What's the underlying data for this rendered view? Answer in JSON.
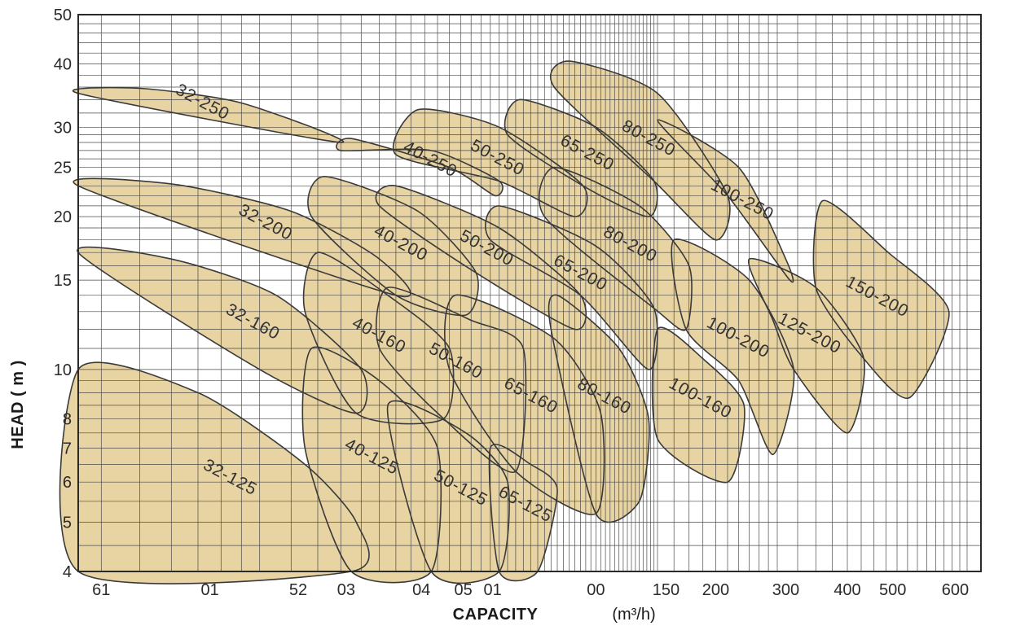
{
  "chart_data": {
    "type": "area",
    "title": "",
    "xlabel": "CAPACITY",
    "xunit": "(m³/h)",
    "ylabel": "HEAD ( m )",
    "x_scale": "log",
    "y_scale": "log",
    "xlim": [
      3.5,
      650
    ],
    "ylim": [
      4,
      50
    ],
    "grid": true,
    "x_tick_labels": [
      "61",
      "01",
      "52",
      "03",
      "04",
      "05",
      "01",
      "00",
      "150",
      "200",
      "300",
      "400",
      "500",
      "600"
    ],
    "y_ticks": [
      4,
      5,
      6,
      7,
      8,
      10,
      15,
      20,
      25,
      30,
      40,
      50
    ],
    "colors": {
      "fill": "#e8d3a2",
      "stroke": "#3a3a3a",
      "grid": "#4a4a4a"
    },
    "regions": [
      {
        "name": "32-250",
        "points": [
          [
            3.5,
            35.0
          ],
          [
            5.0,
            35.8
          ],
          [
            9.0,
            33.5
          ],
          [
            16.0,
            28.0
          ]
        ]
      },
      {
        "name": "40-250",
        "points": [
          [
            17.0,
            28.5
          ],
          [
            30.0,
            25.0
          ],
          [
            39.0,
            22.0
          ],
          [
            40.0,
            23.5
          ],
          [
            27.0,
            27.0
          ],
          [
            16.0,
            27.0
          ]
        ]
      },
      {
        "name": "50-250",
        "points": [
          [
            25.0,
            32.5
          ],
          [
            40.0,
            30.0
          ],
          [
            65.0,
            23.0
          ],
          [
            62.0,
            20.0
          ],
          [
            40.0,
            23.5
          ],
          [
            22.0,
            26.5
          ]
        ]
      },
      {
        "name": "65-250",
        "points": [
          [
            45.0,
            34.0
          ],
          [
            70.0,
            30.0
          ],
          [
            98.0,
            23.5
          ],
          [
            95.0,
            20.0
          ],
          [
            65.0,
            23.0
          ],
          [
            42.0,
            29.0
          ]
        ]
      },
      {
        "name": "80-250",
        "points": [
          [
            60.0,
            40.5
          ],
          [
            100.0,
            35.0
          ],
          [
            150.0,
            22.0
          ],
          [
            140.0,
            18.0
          ],
          [
            98.0,
            23.5
          ],
          [
            55.0,
            36.0
          ]
        ]
      },
      {
        "name": "100-250",
        "points": [
          [
            100.0,
            31.0
          ],
          [
            160.0,
            25.0
          ],
          [
            210.0,
            16.5
          ],
          [
            215.0,
            15.0
          ],
          [
            150.0,
            22.0
          ]
        ]
      },
      {
        "name": "32-200",
        "points": [
          [
            3.5,
            23.0
          ],
          [
            6.0,
            23.2
          ],
          [
            12.0,
            20.5
          ],
          [
            20.0,
            16.5
          ],
          [
            22.0,
            14.0
          ]
        ]
      },
      {
        "name": "40-200",
        "points": [
          [
            14.5,
            24.0
          ],
          [
            25.0,
            20.5
          ],
          [
            35.0,
            15.5
          ],
          [
            33.0,
            12.8
          ],
          [
            22.0,
            14.0
          ],
          [
            13.5,
            20.0
          ]
        ]
      },
      {
        "name": "50-200",
        "points": [
          [
            22.0,
            23.0
          ],
          [
            40.0,
            19.0
          ],
          [
            64.0,
            14.0
          ],
          [
            62.0,
            12.0
          ],
          [
            35.0,
            15.5
          ],
          [
            20.0,
            21.0
          ]
        ]
      },
      {
        "name": "65-200",
        "points": [
          [
            40.0,
            21.0
          ],
          [
            70.0,
            17.5
          ],
          [
            98.0,
            13.2
          ],
          [
            95.0,
            10.0
          ],
          [
            64.0,
            14.0
          ],
          [
            38.0,
            18.0
          ]
        ]
      },
      {
        "name": "80-200",
        "points": [
          [
            55.0,
            25.0
          ],
          [
            90.0,
            21.0
          ],
          [
            120.0,
            16.0
          ],
          [
            118.0,
            12.0
          ],
          [
            98.0,
            13.2
          ],
          [
            52.0,
            20.0
          ]
        ]
      },
      {
        "name": "100-200",
        "points": [
          [
            110.0,
            18.0
          ],
          [
            170.0,
            15.0
          ],
          [
            220.0,
            10.0
          ],
          [
            195.0,
            6.8
          ],
          [
            160.0,
            9.5
          ],
          [
            118.0,
            12.0
          ]
        ]
      },
      {
        "name": "125-200",
        "points": [
          [
            170.0,
            16.5
          ],
          [
            250.0,
            14.5
          ],
          [
            330.0,
            10.5
          ],
          [
            300.0,
            7.5
          ],
          [
            220.0,
            10.0
          ],
          [
            195.0,
            12.5
          ]
        ]
      },
      {
        "name": "150-200",
        "points": [
          [
            260.0,
            21.5
          ],
          [
            380.0,
            17.0
          ],
          [
            540.0,
            13.0
          ],
          [
            430.0,
            8.8
          ],
          [
            330.0,
            10.5
          ],
          [
            250.0,
            14.5
          ]
        ]
      },
      {
        "name": "32-160",
        "points": [
          [
            3.5,
            17.0
          ],
          [
            6.0,
            16.5
          ],
          [
            11.0,
            14.0
          ],
          [
            18.0,
            10.0
          ],
          [
            17.5,
            8.2
          ],
          [
            10.0,
            10.0
          ]
        ]
      },
      {
        "name": "40-160",
        "points": [
          [
            14.0,
            17.0
          ],
          [
            21.0,
            14.0
          ],
          [
            30.0,
            11.0
          ],
          [
            29.0,
            8.0
          ],
          [
            17.5,
            8.2
          ],
          [
            13.0,
            13.0
          ]
        ]
      },
      {
        "name": "50-160",
        "points": [
          [
            21.0,
            14.5
          ],
          [
            34.0,
            12.5
          ],
          [
            46.0,
            11.0
          ],
          [
            44.0,
            6.3
          ],
          [
            29.0,
            8.0
          ],
          [
            20.0,
            11.0
          ]
        ]
      },
      {
        "name": "65-160",
        "points": [
          [
            31.0,
            14.0
          ],
          [
            55.0,
            11.5
          ],
          [
            72.0,
            8.2
          ],
          [
            70.0,
            5.2
          ],
          [
            44.0,
            6.3
          ],
          [
            30.0,
            10.0
          ]
        ]
      },
      {
        "name": "80-160",
        "points": [
          [
            56.0,
            14.0
          ],
          [
            80.0,
            11.0
          ],
          [
            95.0,
            8.0
          ],
          [
            90.0,
            5.5
          ],
          [
            70.0,
            5.2
          ],
          [
            54.0,
            12.0
          ]
        ]
      },
      {
        "name": "100-160",
        "points": [
          [
            100.0,
            12.0
          ],
          [
            130.0,
            10.5
          ],
          [
            165.0,
            8.5
          ],
          [
            150.0,
            6.0
          ],
          [
            100.0,
            7.3
          ]
        ]
      },
      {
        "name": "32-125",
        "points": [
          [
            3.5,
            10.0
          ],
          [
            7.0,
            9.0
          ],
          [
            13.0,
            6.5
          ],
          [
            17.5,
            5.0
          ],
          [
            17.0,
            4.0
          ],
          [
            3.5,
            4.0
          ]
        ]
      },
      {
        "name": "40-125",
        "points": [
          [
            13.5,
            11.0
          ],
          [
            20.0,
            9.5
          ],
          [
            28.0,
            7.0
          ],
          [
            27.0,
            4.0
          ],
          [
            17.0,
            4.0
          ],
          [
            13.0,
            7.0
          ]
        ]
      },
      {
        "name": "50-125",
        "points": [
          [
            21.0,
            8.5
          ],
          [
            33.0,
            7.5
          ],
          [
            42.0,
            6.0
          ],
          [
            40.0,
            4.0
          ],
          [
            27.0,
            4.0
          ]
        ]
      },
      {
        "name": "65-125",
        "points": [
          [
            38.0,
            7.0
          ],
          [
            48.0,
            6.5
          ],
          [
            56.0,
            5.8
          ],
          [
            50.0,
            4.0
          ],
          [
            40.0,
            4.0
          ]
        ]
      }
    ]
  }
}
